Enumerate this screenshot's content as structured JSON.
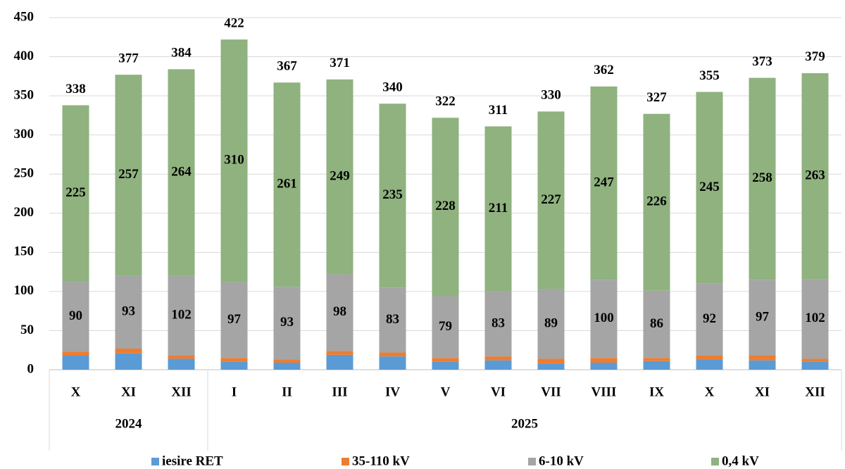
{
  "chart_data": {
    "type": "stacked_bar",
    "categories": [
      "X",
      "XI",
      "XII",
      "I",
      "II",
      "III",
      "IV",
      "V",
      "VI",
      "VII",
      "VIII",
      "IX",
      "X",
      "XI",
      "XII"
    ],
    "groups": [
      {
        "label": "2024",
        "span": 3
      },
      {
        "label": "2025",
        "span": 12
      }
    ],
    "series": [
      {
        "name": "iesire RET",
        "color": "#5b9bd5",
        "values": [
          18,
          21,
          14,
          10,
          9,
          19,
          17,
          10,
          12,
          8,
          9,
          11,
          13,
          12,
          10
        ]
      },
      {
        "name": "35-110 kV",
        "color": "#ed7d31",
        "values": [
          5,
          6,
          4,
          5,
          4,
          5,
          5,
          5,
          5,
          6,
          6,
          4,
          5,
          6,
          4
        ]
      },
      {
        "name": "6-10 kV",
        "color": "#a5a5a5",
        "values": [
          90,
          93,
          102,
          97,
          93,
          98,
          83,
          79,
          83,
          89,
          100,
          86,
          92,
          97,
          102
        ],
        "labeled": true
      },
      {
        "name": "0,4 kV",
        "color": "#8fb27f",
        "values": [
          225,
          257,
          264,
          310,
          261,
          249,
          235,
          228,
          211,
          227,
          247,
          226,
          245,
          258,
          263
        ],
        "labeled": true
      }
    ],
    "totals": [
      338,
      377,
      384,
      422,
      367,
      371,
      340,
      322,
      311,
      330,
      362,
      327,
      355,
      373,
      379
    ],
    "ylim": [
      0,
      450
    ],
    "yticks": [
      0,
      50,
      100,
      150,
      200,
      250,
      300,
      350,
      400,
      450
    ],
    "grid": true,
    "legend": "bottom"
  }
}
